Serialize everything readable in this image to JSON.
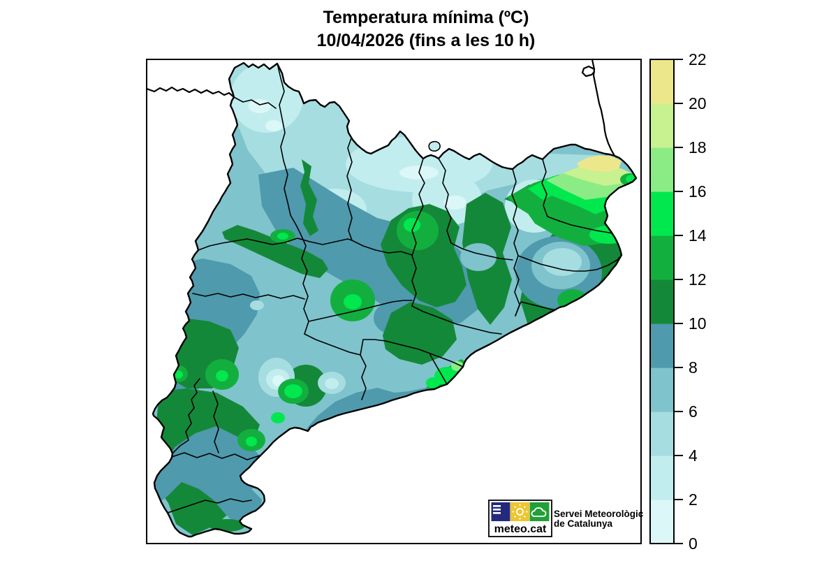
{
  "title": {
    "line1": "Temperatura mínima (ºC)",
    "line2": "10/04/2026 (fins a les 10 h)"
  },
  "legend": {
    "unit": "ºC",
    "ticks": [
      "0",
      "2",
      "4",
      "6",
      "8",
      "10",
      "12",
      "14",
      "16",
      "18",
      "20",
      "22"
    ],
    "bands": [
      {
        "range": "0-2",
        "color": "#DCF7F7"
      },
      {
        "range": "2-4",
        "color": "#C2EDEF"
      },
      {
        "range": "4-6",
        "color": "#A6DDE0"
      },
      {
        "range": "6-8",
        "color": "#7FC3CC"
      },
      {
        "range": "8-10",
        "color": "#4F9AAD"
      },
      {
        "range": "10-12",
        "color": "#148839"
      },
      {
        "range": "12-14",
        "color": "#12AF3F"
      },
      {
        "range": "14-16",
        "color": "#00E84E"
      },
      {
        "range": "16-18",
        "color": "#8BEC85"
      },
      {
        "range": "18-20",
        "color": "#C8F18F"
      },
      {
        "range": "20-22",
        "color": "#EDE78C"
      }
    ]
  },
  "branding": {
    "logo_text": "meteo.cat",
    "org_line1": "Servei Meteorològic",
    "org_line2": "de Catalunya",
    "logo_square_blue": "#232A7C",
    "logo_square_yellow": "#EDC52F",
    "logo_square_green": "#21A038"
  }
}
